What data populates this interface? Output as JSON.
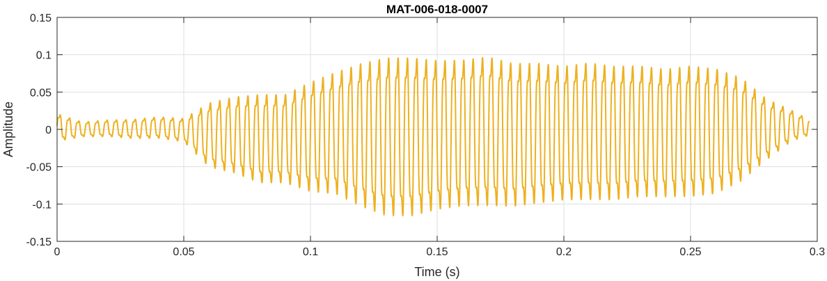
{
  "chart_data": {
    "type": "line",
    "title": "MAT-006-018-0007",
    "xlabel": "Time (s)",
    "ylabel": "Amplitude",
    "xlim": [
      0,
      0.3
    ],
    "ylim": [
      -0.15,
      0.15
    ],
    "xticks": [
      0,
      0.05,
      0.1,
      0.15,
      0.2,
      0.25,
      0.3
    ],
    "xtick_labels": [
      "0",
      "0.05",
      "0.1",
      "0.15",
      "0.2",
      "0.25",
      "0.3"
    ],
    "yticks": [
      -0.15,
      -0.1,
      -0.05,
      0,
      0.05,
      0.1,
      0.15
    ],
    "ytick_labels": [
      "-0.15",
      "-0.1",
      "-0.05",
      "0",
      "0.05",
      "0.1",
      "0.15"
    ],
    "grid": true,
    "colors": {
      "line": "#EDB120",
      "grid": "#dfdfdf",
      "axes": "#262626"
    },
    "series": [
      {
        "x": [
          0,
          0.01,
          0.02,
          0.03,
          0.04,
          0.05,
          0.06,
          0.07,
          0.08,
          0.09,
          0.1,
          0.11,
          0.12,
          0.13,
          0.14,
          0.15,
          0.16,
          0.17,
          0.18,
          0.19,
          0.2,
          0.21,
          0.22,
          0.23,
          0.24,
          0.25,
          0.26,
          0.27,
          0.28,
          0.29,
          0.297
        ],
        "upper": [
          0.025,
          0.012,
          0.015,
          0.016,
          0.02,
          0.018,
          0.045,
          0.055,
          0.06,
          0.06,
          0.08,
          0.095,
          0.11,
          0.12,
          0.12,
          0.115,
          0.115,
          0.12,
          0.11,
          0.11,
          0.105,
          0.11,
          0.105,
          0.105,
          0.1,
          0.105,
          0.1,
          0.085,
          0.05,
          0.03,
          0.015
        ],
        "lower": [
          -0.02,
          -0.012,
          -0.012,
          -0.015,
          -0.015,
          -0.02,
          -0.06,
          -0.07,
          -0.085,
          -0.085,
          -0.1,
          -0.105,
          -0.125,
          -0.14,
          -0.14,
          -0.13,
          -0.125,
          -0.125,
          -0.125,
          -0.12,
          -0.115,
          -0.115,
          -0.115,
          -0.11,
          -0.11,
          -0.11,
          -0.105,
          -0.085,
          -0.05,
          -0.02,
          -0.01
        ],
        "cycles_per_second": 270
      }
    ]
  }
}
